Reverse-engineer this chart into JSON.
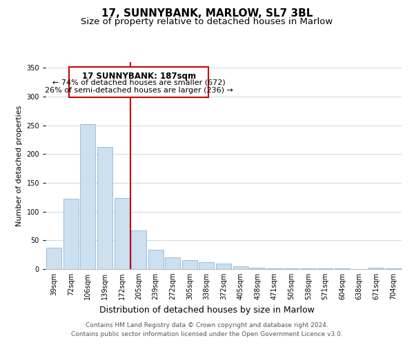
{
  "title": "17, SUNNYBANK, MARLOW, SL7 3BL",
  "subtitle": "Size of property relative to detached houses in Marlow",
  "xlabel": "Distribution of detached houses by size in Marlow",
  "ylabel": "Number of detached properties",
  "bar_labels": [
    "39sqm",
    "72sqm",
    "106sqm",
    "139sqm",
    "172sqm",
    "205sqm",
    "239sqm",
    "272sqm",
    "305sqm",
    "338sqm",
    "372sqm",
    "405sqm",
    "438sqm",
    "471sqm",
    "505sqm",
    "538sqm",
    "571sqm",
    "604sqm",
    "638sqm",
    "671sqm",
    "704sqm"
  ],
  "bar_values": [
    37,
    122,
    252,
    212,
    124,
    67,
    34,
    20,
    16,
    12,
    10,
    5,
    3,
    1,
    1,
    1,
    1,
    1,
    0,
    3,
    1
  ],
  "bar_color": "#cce0f0",
  "bar_edge_color": "#8ab8d8",
  "ylim": [
    0,
    360
  ],
  "yticks": [
    0,
    50,
    100,
    150,
    200,
    250,
    300,
    350
  ],
  "vline_color": "#cc0000",
  "annotation_title": "17 SUNNYBANK: 187sqm",
  "annotation_line1": "← 74% of detached houses are smaller (672)",
  "annotation_line2": "26% of semi-detached houses are larger (236) →",
  "annotation_box_color": "#ffffff",
  "annotation_box_edge": "#cc0000",
  "footer_line1": "Contains HM Land Registry data © Crown copyright and database right 2024.",
  "footer_line2": "Contains public sector information licensed under the Open Government Licence v3.0.",
  "bg_color": "#ffffff",
  "grid_color": "#c8d8e8",
  "title_fontsize": 11,
  "subtitle_fontsize": 9.5,
  "xlabel_fontsize": 9,
  "ylabel_fontsize": 8,
  "tick_fontsize": 7,
  "footer_fontsize": 6.5
}
